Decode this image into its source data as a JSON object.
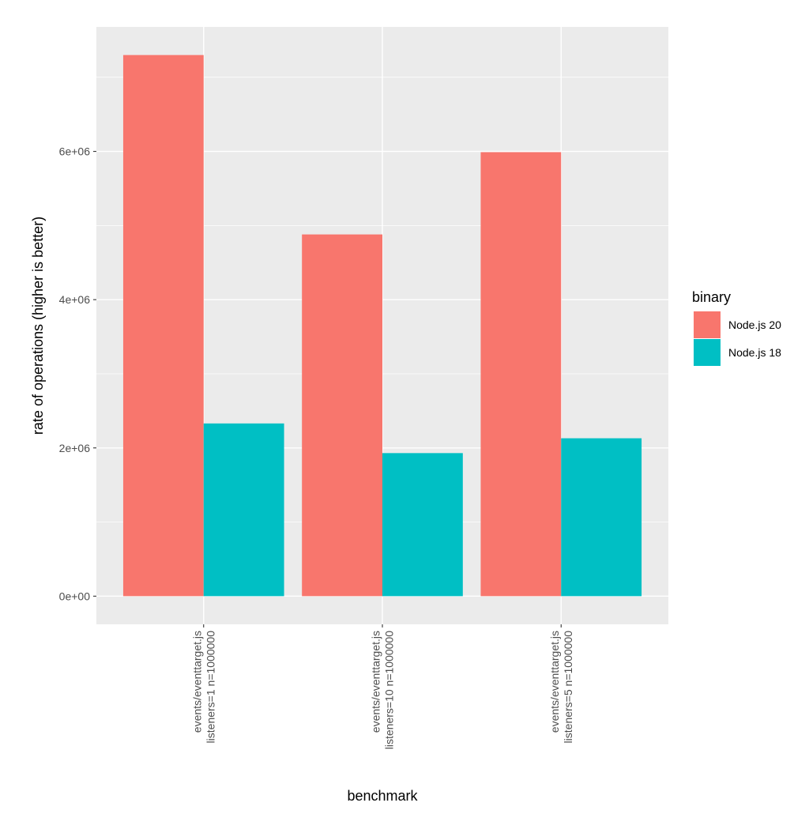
{
  "chart_data": {
    "type": "bar",
    "xlabel": "benchmark",
    "ylabel": "rate of operations (higher is better)",
    "categories": [
      [
        "events/eventtarget.js",
        "listeners=1 n=1000000"
      ],
      [
        "events/eventtarget.js",
        "listeners=10 n=1000000"
      ],
      [
        "events/eventtarget.js",
        "listeners=5 n=1000000"
      ]
    ],
    "series": [
      {
        "name": "Node.js 20",
        "color": "#F8766D",
        "values": [
          7300000,
          4880000,
          5990000
        ]
      },
      {
        "name": "Node.js 18",
        "color": "#00BFC4",
        "values": [
          2330000,
          1930000,
          2130000
        ]
      }
    ],
    "ylim": [
      -380000,
      7680000
    ],
    "y_ticks": [
      0,
      2000000,
      4000000,
      6000000
    ],
    "y_tick_labels": [
      "0e+00",
      "2e+06",
      "4e+06",
      "6e+06"
    ],
    "grid": true,
    "panel_background": "#EBEBEB",
    "legend": {
      "title": "binary",
      "position": "right"
    }
  }
}
